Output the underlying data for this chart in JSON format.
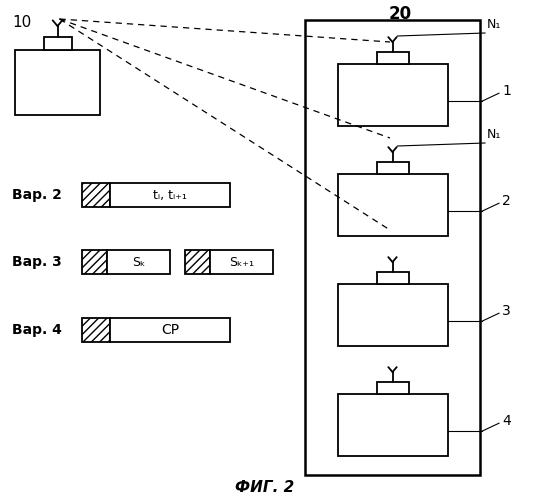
{
  "fig_width": 5.34,
  "fig_height": 5.0,
  "dpi": 100,
  "bg_color": "#ffffff",
  "label_10": "10",
  "label_20": "20",
  "fig_caption": "ФИГ. 2",
  "var2_label": "Вар. 2",
  "var3_label": "Вар. 3",
  "var4_label": "Вар. 4",
  "var2_text": "tᵢ, tᵢ₊₁",
  "var3_text1": "Sₖ",
  "var3_text2": "Sₖ₊₁",
  "var4_text": "CP",
  "line_color": "#000000",
  "bg_color2": "#ffffff"
}
